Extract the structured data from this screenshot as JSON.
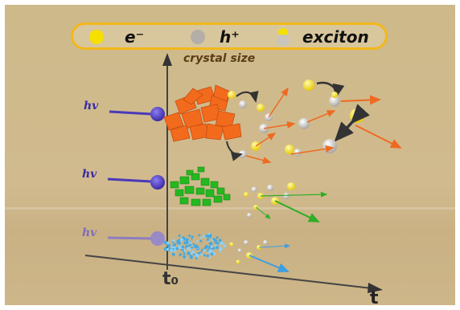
{
  "legend": {
    "electron_label": "e⁻",
    "hole_label": "h⁺",
    "exciton_label": "exciton"
  },
  "axes": {
    "y_label": "crystal size",
    "x_label": "t",
    "origin_label": "t₀"
  },
  "photon_labels": [
    "hv",
    "hv",
    "hv"
  ],
  "colors": {
    "legend_border": "#f2b81a",
    "electron": "#f5e000",
    "hole": "#b8b4ad",
    "large_crystal": "#f26b1d",
    "medium_crystal": "#25b820",
    "small_crystal": "#45a8e0",
    "photon_beam": "#4a39b8"
  },
  "icons": {
    "electron": "yellow-sphere",
    "hole": "gray-sphere",
    "exciton": "yellow-gray-sphere-pair"
  }
}
